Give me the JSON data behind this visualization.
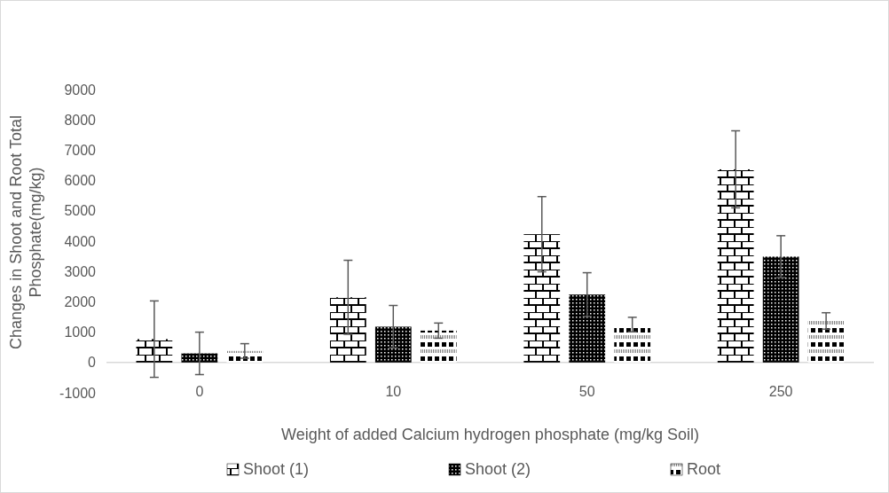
{
  "chart_data": {
    "type": "bar",
    "xlabel": "Weight of added Calcium hydrogen phosphate (mg/kg Soil)",
    "ylabel": "Changes in Shoot and Root Total Phosphate(mg/kg)",
    "categories": [
      "0",
      "10",
      "50",
      "250"
    ],
    "ylim": [
      -1000,
      9000
    ],
    "yticks": [
      -1000,
      0,
      1000,
      2000,
      3000,
      4000,
      5000,
      6000,
      7000,
      8000,
      9000
    ],
    "legend": "bottom",
    "series": [
      {
        "name": "Shoot (1)",
        "color": "#000000",
        "values": [
          770,
          2150,
          4230,
          6370
        ],
        "errors": [
          1260,
          1220,
          1240,
          1270
        ]
      },
      {
        "name": "Shoot (2)",
        "color": "#000000",
        "values": [
          300,
          1180,
          2240,
          3490
        ],
        "errors": [
          700,
          700,
          720,
          690
        ]
      },
      {
        "name": "Root",
        "color": "#000000",
        "values": [
          380,
          1050,
          1250,
          1370
        ],
        "errors": [
          240,
          250,
          240,
          270
        ]
      }
    ]
  }
}
